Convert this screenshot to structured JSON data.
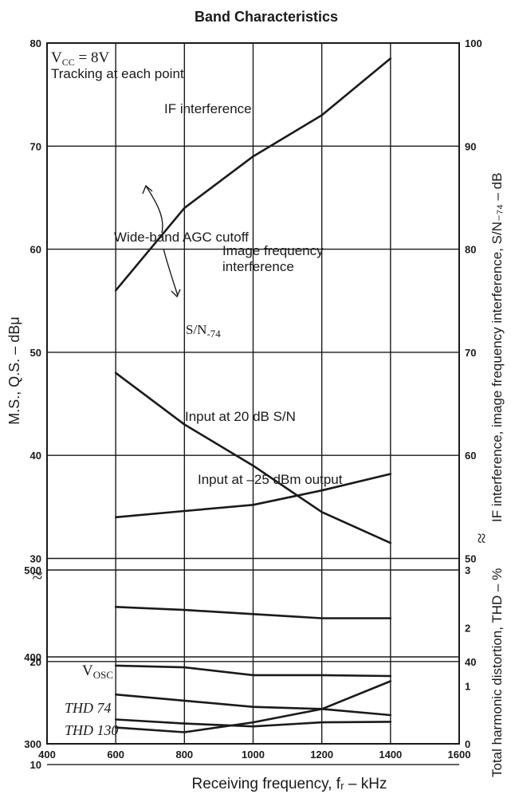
{
  "chart_data": {
    "type": "line",
    "title": "Band Characteristics",
    "xlabel": "Receiving frequency, fᵣ – kHz",
    "xlim": [
      400,
      1600
    ],
    "x_ticks": [
      "400",
      "600",
      "800",
      "1000",
      "1200",
      "1400",
      "1600"
    ],
    "ylabel_left": "M.S., Q.S. – dBμ",
    "ylabel_right_upper": "IF interference, image frequency interference, S/N₋₇₄ – dB",
    "ylabel_right_lower": "Total harmonic distortion, THD – %",
    "y_left_upper_ticks": [
      "10",
      "20",
      "30",
      "40",
      "50",
      "60",
      "70",
      "80"
    ],
    "y_left_lower_ticks": [
      "300",
      "400",
      "500"
    ],
    "y_right_upper_ticks": [
      "40",
      "50",
      "60",
      "70",
      "80",
      "90",
      "100"
    ],
    "y_right_lower_ticks": [
      "0",
      "1",
      "2",
      "3"
    ],
    "axis_break_symbol": "≈",
    "conditions": {
      "vcc_main": "V",
      "vcc_sub": "CC",
      "vcc_value": " = 8V",
      "line2": "Tracking at each point"
    },
    "series": [
      {
        "name": "IF interference",
        "axis": "right, dB",
        "x": [
          600,
          800,
          1000,
          1200,
          1400
        ],
        "y": [
          76,
          84,
          89,
          93,
          98.5
        ]
      },
      {
        "name": "Image frequency interference",
        "axis": "right, dB",
        "x": [
          600,
          800,
          1000,
          1200,
          1400
        ],
        "y": [
          68,
          63,
          59,
          54.5,
          51.5
        ]
      },
      {
        "name": "S/N-74",
        "axis": "right, dB",
        "x": [
          600,
          800,
          1000,
          1200,
          1400
        ],
        "y": [
          54,
          54.6,
          55.2,
          56.6,
          58.2
        ]
      },
      {
        "name": "Input at 20 dB S/N",
        "axis": "left, dBμ",
        "x": [
          600,
          800,
          1000,
          1200,
          1400
        ],
        "y": [
          25.3,
          25,
          24.6,
          24.2,
          24.2
        ]
      },
      {
        "name": "Input at –25 dBm output",
        "axis": "left, dBμ",
        "x": [
          600,
          800,
          1000,
          1200,
          1400
        ],
        "y": [
          16.8,
          16.2,
          15.6,
          15.4,
          14.8
        ]
      },
      {
        "name": "VOSC",
        "axis": "left, lower scale",
        "x": [
          600,
          800,
          1000,
          1200,
          1400
        ],
        "y": [
          390,
          388,
          379,
          379,
          378
        ]
      },
      {
        "name": "THD 74",
        "axis": "right, %",
        "x": [
          600,
          800,
          1000,
          1200,
          1400
        ],
        "y": [
          0.42,
          0.35,
          0.3,
          0.37,
          0.38
        ]
      },
      {
        "name": "THD 130",
        "axis": "right, %",
        "x": [
          600,
          800,
          1000,
          1200,
          1400
        ],
        "y": [
          0.28,
          0.2,
          0.37,
          0.6,
          1.08
        ]
      }
    ],
    "labels": {
      "if_interference": "IF interference",
      "agc": "Wide-band AGC cutoff",
      "image_1": "Image frequency",
      "image_2": "interference",
      "sn_main": "S/N",
      "sn_sub": "-74",
      "input_20db": "Input at 20 dB S/N",
      "input_25dbm": "Input at –25 dBm output",
      "vosc_main": "V",
      "vosc_sub": "OSC",
      "thd74": "THD 74",
      "thd130": "THD 130"
    },
    "grid": true
  }
}
